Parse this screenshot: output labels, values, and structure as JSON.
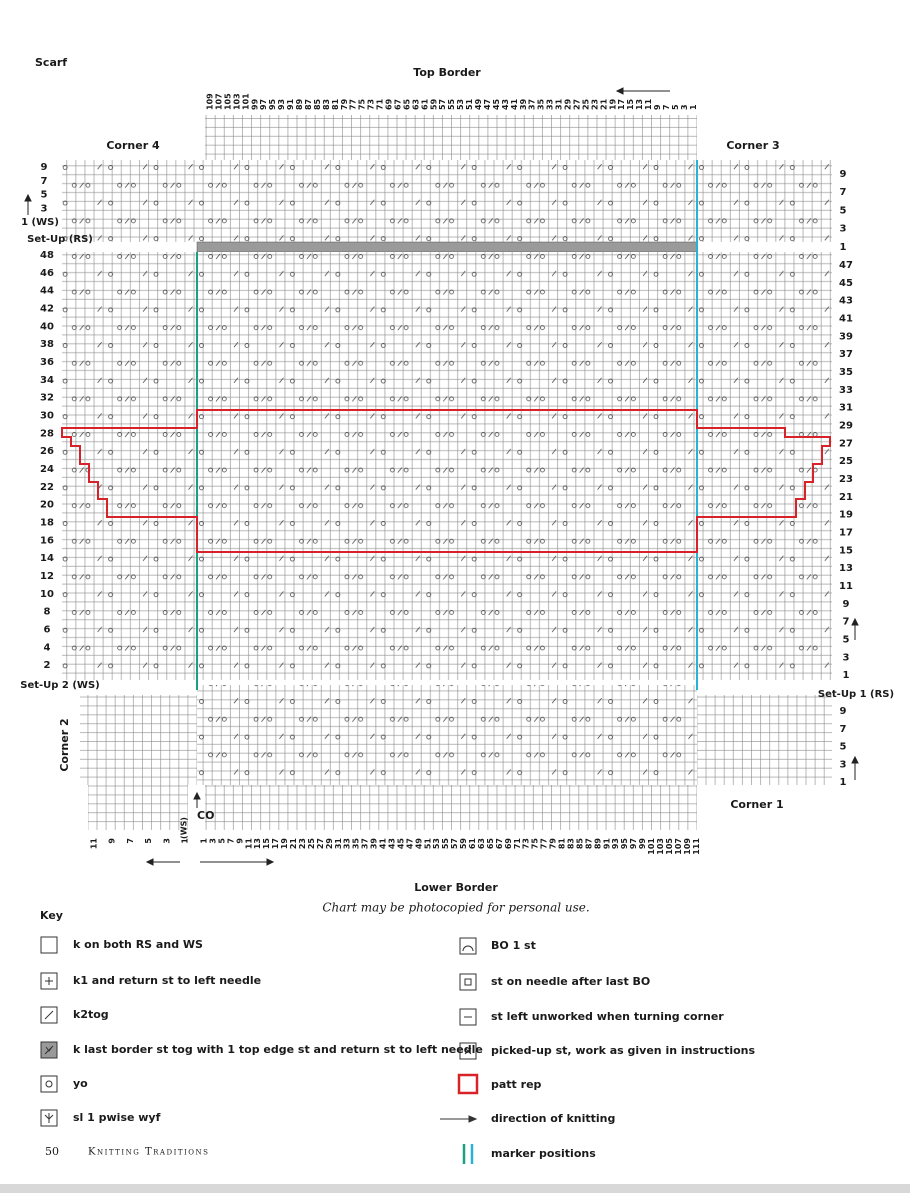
{
  "title": "Scarf",
  "labels": {
    "top_border": "Top Border",
    "lower_border": "Lower Border",
    "corner_1": "Corner 1",
    "corner_2": "Corner 2",
    "corner_3": "Corner 3",
    "corner_4": "Corner 4",
    "co": "CO",
    "ws": "(WS)",
    "note": "Chart may be photocopied for personal use."
  },
  "top_columns": [
    109,
    107,
    105,
    103,
    101,
    99,
    97,
    95,
    93,
    91,
    89,
    87,
    85,
    83,
    81,
    79,
    77,
    75,
    73,
    71,
    69,
    67,
    65,
    63,
    61,
    59,
    57,
    55,
    53,
    51,
    49,
    47,
    45,
    43,
    41,
    39,
    37,
    35,
    33,
    31,
    29,
    27,
    25,
    23,
    21,
    19,
    17,
    15,
    13,
    11,
    9,
    7,
    5,
    3,
    1
  ],
  "bottom_columns_left": [
    11,
    9,
    7,
    5,
    3,
    1
  ],
  "bottom_columns": [
    1,
    3,
    5,
    7,
    9,
    11,
    13,
    15,
    17,
    19,
    21,
    23,
    25,
    27,
    29,
    31,
    33,
    35,
    37,
    39,
    41,
    43,
    45,
    47,
    49,
    51,
    53,
    55,
    57,
    59,
    61,
    63,
    65,
    67,
    69,
    71,
    73,
    75,
    77,
    79,
    81,
    83,
    85,
    87,
    89,
    91,
    93,
    95,
    97,
    99,
    101,
    103,
    105,
    107,
    109,
    111
  ],
  "rows": {
    "left_top": [
      9,
      7,
      5,
      3
    ],
    "left_top_1": "1 (WS)",
    "left_setup": "Set-Up (RS)",
    "left_body": [
      48,
      46,
      44,
      42,
      40,
      38,
      36,
      34,
      32,
      30,
      28,
      26,
      24,
      22,
      20,
      18,
      16,
      14,
      12,
      10,
      8,
      6,
      4,
      2
    ],
    "left_setup_2": "Set-Up 2 (WS)",
    "right_top": [
      9,
      7,
      5,
      3,
      1
    ],
    "right_body": [
      47,
      45,
      43,
      41,
      39,
      37,
      35,
      33,
      31,
      29,
      27,
      25,
      23,
      21,
      19,
      17,
      15,
      13,
      11,
      9,
      7,
      5,
      3,
      1
    ],
    "right_setup_1": "Set-Up 1 (RS)",
    "right_lower": [
      9,
      7,
      5,
      3,
      1
    ]
  },
  "key": {
    "title": "Key",
    "left": [
      "k on both RS and WS",
      "k1 and return st to left needle",
      "k2tog",
      "k last border st tog with 1 top edge st and return st to left needle",
      "yo",
      "sl 1 pwise wyf"
    ],
    "right": [
      "BO 1 st",
      "st on needle after last BO",
      "st left unworked when turning corner",
      "picked-up st, work as given in instructions",
      "patt rep",
      "direction of knitting",
      "marker positions"
    ]
  },
  "footer": {
    "page": "50",
    "book": "Knitting Traditions"
  }
}
